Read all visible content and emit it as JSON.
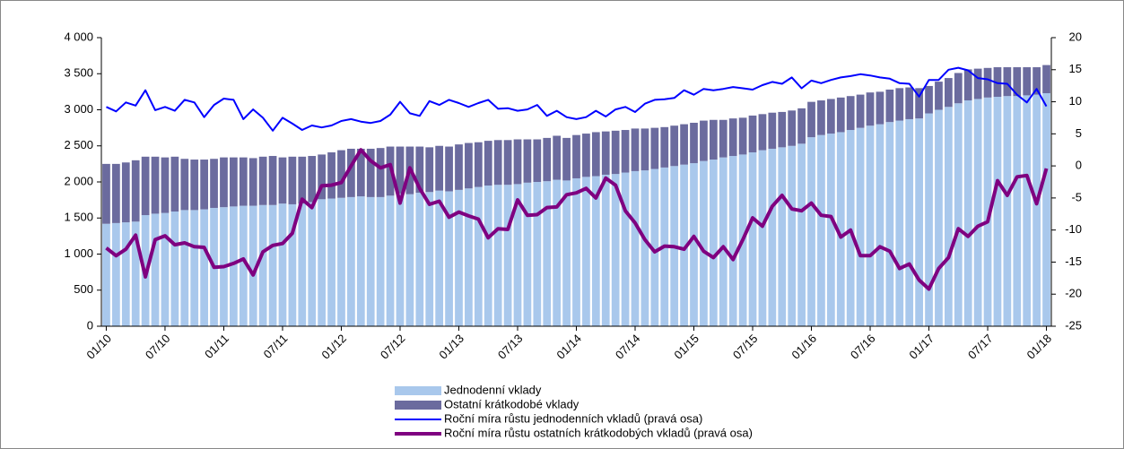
{
  "chart_data": {
    "type": "bar",
    "categories": [
      "01/10",
      null,
      null,
      null,
      null,
      null,
      "07/10",
      null,
      null,
      null,
      null,
      null,
      "01/11",
      null,
      null,
      null,
      null,
      null,
      "07/11",
      null,
      null,
      null,
      null,
      null,
      "01/12",
      null,
      null,
      null,
      null,
      null,
      "07/12",
      null,
      null,
      null,
      null,
      null,
      "01/13",
      null,
      null,
      null,
      null,
      null,
      "07/13",
      null,
      null,
      null,
      null,
      null,
      "01/14",
      null,
      null,
      null,
      null,
      null,
      "07/14",
      null,
      null,
      null,
      null,
      null,
      "01/15",
      null,
      null,
      null,
      null,
      null,
      "07/15",
      null,
      null,
      null,
      null,
      null,
      "01/16",
      null,
      null,
      null,
      null,
      null,
      "07/16",
      null,
      null,
      null,
      null,
      null,
      "01/17",
      null,
      null,
      null,
      null,
      null,
      "07/17",
      null,
      null,
      null,
      null,
      null,
      "01/18"
    ],
    "series": [
      {
        "name": "Jednodenní vklady",
        "type": "bar",
        "color": "#a9c8ec",
        "values": [
          1420,
          1430,
          1440,
          1450,
          1540,
          1560,
          1570,
          1590,
          1610,
          1610,
          1620,
          1640,
          1650,
          1660,
          1670,
          1670,
          1680,
          1680,
          1700,
          1690,
          1700,
          1720,
          1760,
          1770,
          1780,
          1790,
          1800,
          1790,
          1790,
          1810,
          1840,
          1830,
          1850,
          1860,
          1880,
          1870,
          1890,
          1910,
          1930,
          1950,
          1960,
          1960,
          1970,
          1990,
          2000,
          2010,
          2030,
          2020,
          2050,
          2070,
          2080,
          2100,
          2110,
          2130,
          2150,
          2160,
          2180,
          2200,
          2220,
          2240,
          2260,
          2290,
          2310,
          2340,
          2360,
          2380,
          2410,
          2440,
          2460,
          2480,
          2500,
          2530,
          2620,
          2650,
          2670,
          2690,
          2720,
          2750,
          2780,
          2800,
          2830,
          2850,
          2870,
          2880,
          2950,
          3000,
          3040,
          3090,
          3130,
          3150,
          3170,
          3180,
          3190,
          3190,
          3200,
          3210,
          3230
        ]
      },
      {
        "name": "Ostatní krátkodobé vklady",
        "type": "bar",
        "color": "#6b6b9e",
        "values": [
          830,
          820,
          830,
          850,
          810,
          790,
          770,
          760,
          710,
          700,
          690,
          680,
          690,
          680,
          670,
          660,
          670,
          680,
          640,
          660,
          650,
          640,
          620,
          640,
          660,
          670,
          660,
          670,
          680,
          680,
          650,
          660,
          640,
          620,
          620,
          620,
          630,
          630,
          620,
          620,
          620,
          620,
          620,
          600,
          590,
          600,
          610,
          590,
          600,
          600,
          610,
          600,
          600,
          590,
          590,
          580,
          570,
          560,
          560,
          560,
          560,
          560,
          550,
          520,
          520,
          510,
          510,
          500,
          500,
          490,
          490,
          490,
          490,
          480,
          480,
          480,
          470,
          460,
          460,
          450,
          450,
          450,
          440,
          420,
          380,
          390,
          400,
          420,
          430,
          420,
          410,
          410,
          400,
          400,
          390,
          380,
          390
        ]
      },
      {
        "name": "Roční míra růstu jednodenních vkladů (pravá osa)",
        "type": "line",
        "axis": "y2",
        "color": "#0000ff",
        "width": 2,
        "values": [
          9.2,
          8.5,
          9.9,
          9.4,
          11.8,
          8.7,
          9.2,
          8.6,
          10.3,
          9.9,
          7.6,
          9.5,
          10.5,
          10.3,
          7.3,
          8.8,
          7.5,
          5.5,
          7.5,
          6.6,
          5.6,
          6.3,
          6.0,
          6.3,
          7.0,
          7.3,
          6.9,
          6.7,
          7.0,
          8.0,
          10.0,
          8.2,
          7.8,
          10.1,
          9.5,
          10.3,
          9.8,
          9.2,
          9.8,
          10.3,
          8.9,
          9.0,
          8.6,
          8.8,
          9.5,
          7.8,
          8.6,
          7.6,
          7.3,
          7.6,
          8.6,
          7.7,
          8.8,
          9.2,
          8.4,
          9.7,
          10.3,
          10.4,
          10.6,
          11.8,
          11.1,
          12.0,
          11.8,
          12.0,
          12.3,
          12.1,
          11.9,
          12.6,
          13.1,
          12.8,
          13.8,
          12.1,
          13.3,
          12.9,
          13.4,
          13.8,
          14.0,
          14.3,
          14.1,
          13.8,
          13.6,
          12.9,
          12.8,
          10.8,
          13.4,
          13.4,
          15.0,
          15.3,
          14.9,
          13.7,
          13.5,
          12.9,
          12.8,
          11.1,
          9.9,
          12.0,
          9.3
        ]
      },
      {
        "name": "Roční míra růstu ostatních krátkodobých vkladů (pravá osa)",
        "type": "line",
        "axis": "y2",
        "color": "#7f0080",
        "width": 4,
        "values": [
          -12.8,
          -14,
          -13,
          -10.8,
          -17.3,
          -11.5,
          -10.9,
          -12.3,
          -12,
          -12.6,
          -12.7,
          -15.8,
          -15.7,
          -15.2,
          -14.5,
          -17,
          -13.4,
          -12.4,
          -12.1,
          -10.5,
          -5.2,
          -6.5,
          -3.1,
          -3,
          -2.6,
          0,
          2.5,
          0.8,
          -0.3,
          0.2,
          -5.8,
          -0.3,
          -3.5,
          -6,
          -5.5,
          -8,
          -7.2,
          -7.8,
          -8.3,
          -11.2,
          -9.8,
          -9.9,
          -5.3,
          -7.7,
          -7.6,
          -6.5,
          -6.4,
          -4.5,
          -4.2,
          -3.5,
          -5,
          -1.9,
          -3,
          -7,
          -8.9,
          -11.5,
          -13.4,
          -12.5,
          -12.6,
          -13,
          -11,
          -13.3,
          -14.3,
          -12.6,
          -14.6,
          -11.5,
          -8.1,
          -9.4,
          -6.3,
          -4.6,
          -6.7,
          -7,
          -5.8,
          -7.7,
          -7.9,
          -11.1,
          -10,
          -14,
          -14,
          -12.6,
          -13.3,
          -16,
          -15.3,
          -17.8,
          -19.2,
          -16,
          -14.3,
          -9.8,
          -11,
          -9.4,
          -8.7,
          -2.3,
          -4.6,
          -1.7,
          -1.5,
          -5.9,
          -0.4
        ]
      }
    ],
    "ylim": [
      0,
      4000
    ],
    "yticks": [
      0,
      500,
      {
        "value": 1000,
        "label": "1 000"
      },
      {
        "value": 1500,
        "label": "1 500"
      },
      {
        "value": 2000,
        "label": "2 000"
      },
      {
        "value": 2500,
        "label": "2 500"
      },
      {
        "value": 3000,
        "label": "3 000"
      },
      {
        "value": 3500,
        "label": "3 500"
      },
      {
        "value": 4000,
        "label": "4 000"
      }
    ],
    "y2lim": [
      -25,
      20
    ],
    "y2ticks": [
      -25,
      -20,
      -15,
      -10,
      -5,
      0,
      5,
      10,
      15,
      20
    ],
    "legend": "bottom"
  }
}
